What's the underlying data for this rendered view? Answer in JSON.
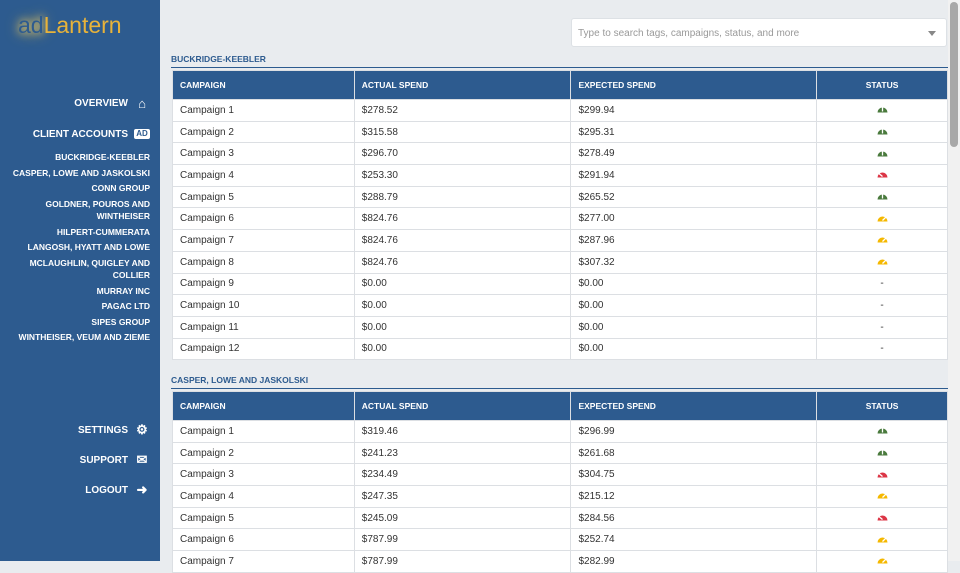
{
  "app": {
    "logo_prefix": "ad",
    "logo_suffix": "Lantern"
  },
  "sidebar": {
    "overview": "OVERVIEW",
    "client_accounts": "CLIENT ACCOUNTS",
    "client_badge": "AD",
    "clients": [
      "BUCKRIDGE-KEEBLER",
      "CASPER, LOWE AND JASKOLSKI",
      "CONN GROUP",
      "GOLDNER, POUROS AND WINTHEISER",
      "HILPERT-CUMMERATA",
      "LANGOSH, HYATT AND LOWE",
      "MCLAUGHLIN, QUIGLEY AND COLLIER",
      "MURRAY INC",
      "PAGAC LTD",
      "SIPES GROUP",
      "WINTHEISER, VEUM AND ZIEME"
    ],
    "settings": "SETTINGS",
    "support": "SUPPORT",
    "logout": "LOGOUT"
  },
  "search": {
    "placeholder": "Type to search tags, campaigns, status, and more"
  },
  "colors": {
    "primary": "#2d5b8f",
    "good": "#4a7a3d",
    "bad": "#dc3545",
    "warn": "#f5b800"
  },
  "columns": [
    "CAMPAIGN",
    "ACTUAL SPEND",
    "EXPECTED SPEND",
    "STATUS"
  ],
  "sections": [
    {
      "title": "BUCKRIDGE-KEEBLER",
      "rows": [
        [
          "Campaign 1",
          "$278.52",
          "$299.94",
          "good"
        ],
        [
          "Campaign 2",
          "$315.58",
          "$295.31",
          "good"
        ],
        [
          "Campaign 3",
          "$296.70",
          "$278.49",
          "good"
        ],
        [
          "Campaign 4",
          "$253.30",
          "$291.94",
          "bad"
        ],
        [
          "Campaign 5",
          "$288.79",
          "$265.52",
          "good"
        ],
        [
          "Campaign 6",
          "$824.76",
          "$277.00",
          "warn"
        ],
        [
          "Campaign 7",
          "$824.76",
          "$287.96",
          "warn"
        ],
        [
          "Campaign 8",
          "$824.76",
          "$307.32",
          "warn"
        ],
        [
          "Campaign 9",
          "$0.00",
          "$0.00",
          "-"
        ],
        [
          "Campaign 10",
          "$0.00",
          "$0.00",
          "-"
        ],
        [
          "Campaign 11",
          "$0.00",
          "$0.00",
          "-"
        ],
        [
          "Campaign 12",
          "$0.00",
          "$0.00",
          "-"
        ]
      ]
    },
    {
      "title": "CASPER, LOWE AND JASKOLSKI",
      "rows": [
        [
          "Campaign 1",
          "$319.46",
          "$296.99",
          "good"
        ],
        [
          "Campaign 2",
          "$241.23",
          "$261.68",
          "good"
        ],
        [
          "Campaign 3",
          "$234.49",
          "$304.75",
          "bad"
        ],
        [
          "Campaign 4",
          "$247.35",
          "$215.12",
          "warn"
        ],
        [
          "Campaign 5",
          "$245.09",
          "$284.56",
          "bad"
        ],
        [
          "Campaign 6",
          "$787.99",
          "$252.74",
          "warn"
        ],
        [
          "Campaign 7",
          "$787.99",
          "$282.99",
          "warn"
        ]
      ]
    }
  ]
}
